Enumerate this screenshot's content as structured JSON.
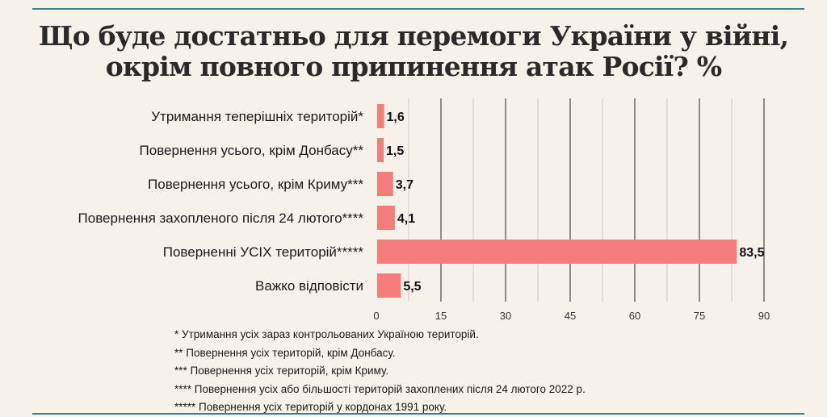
{
  "title": "Що буде достатньо для перемоги України у війні, окрім повного припинення атак Росії? %",
  "chart_data": {
    "type": "bar",
    "orientation": "horizontal",
    "title": "Що буде достатньо для перемоги України у війні, окрім повного припинення атак Росії? %",
    "categories": [
      "Утримання теперішніх територій*",
      "Повернення усього, крім Донбасу**",
      "Повернення усього, крім Криму***",
      "Повернення захопленого після 24 лютого****",
      "Поверненні УСІХ територій*****",
      "Важко відповісти"
    ],
    "values": [
      1.6,
      1.5,
      3.7,
      4.1,
      83.5,
      5.5
    ],
    "value_labels": [
      "1,6",
      "1,5",
      "3,7",
      "4,1",
      "83,5",
      "5,5"
    ],
    "xlim": [
      0,
      90
    ],
    "xticks": [
      0,
      15,
      30,
      45,
      60,
      75,
      90
    ],
    "grid": true,
    "bar_color": "#f47c7c"
  },
  "footnotes": [
    "* Утримання усіх зараз контрольованих Україною територій.",
    "** Повернення усіх територій, крім Донбасу.",
    "*** Повернення усіх територій, крім Криму.",
    "**** Повернення усіх або більшості територій захоплених після 24 лютого 2022 р.",
    "***** Повернення усіх територій у кордонах 1991 року."
  ]
}
